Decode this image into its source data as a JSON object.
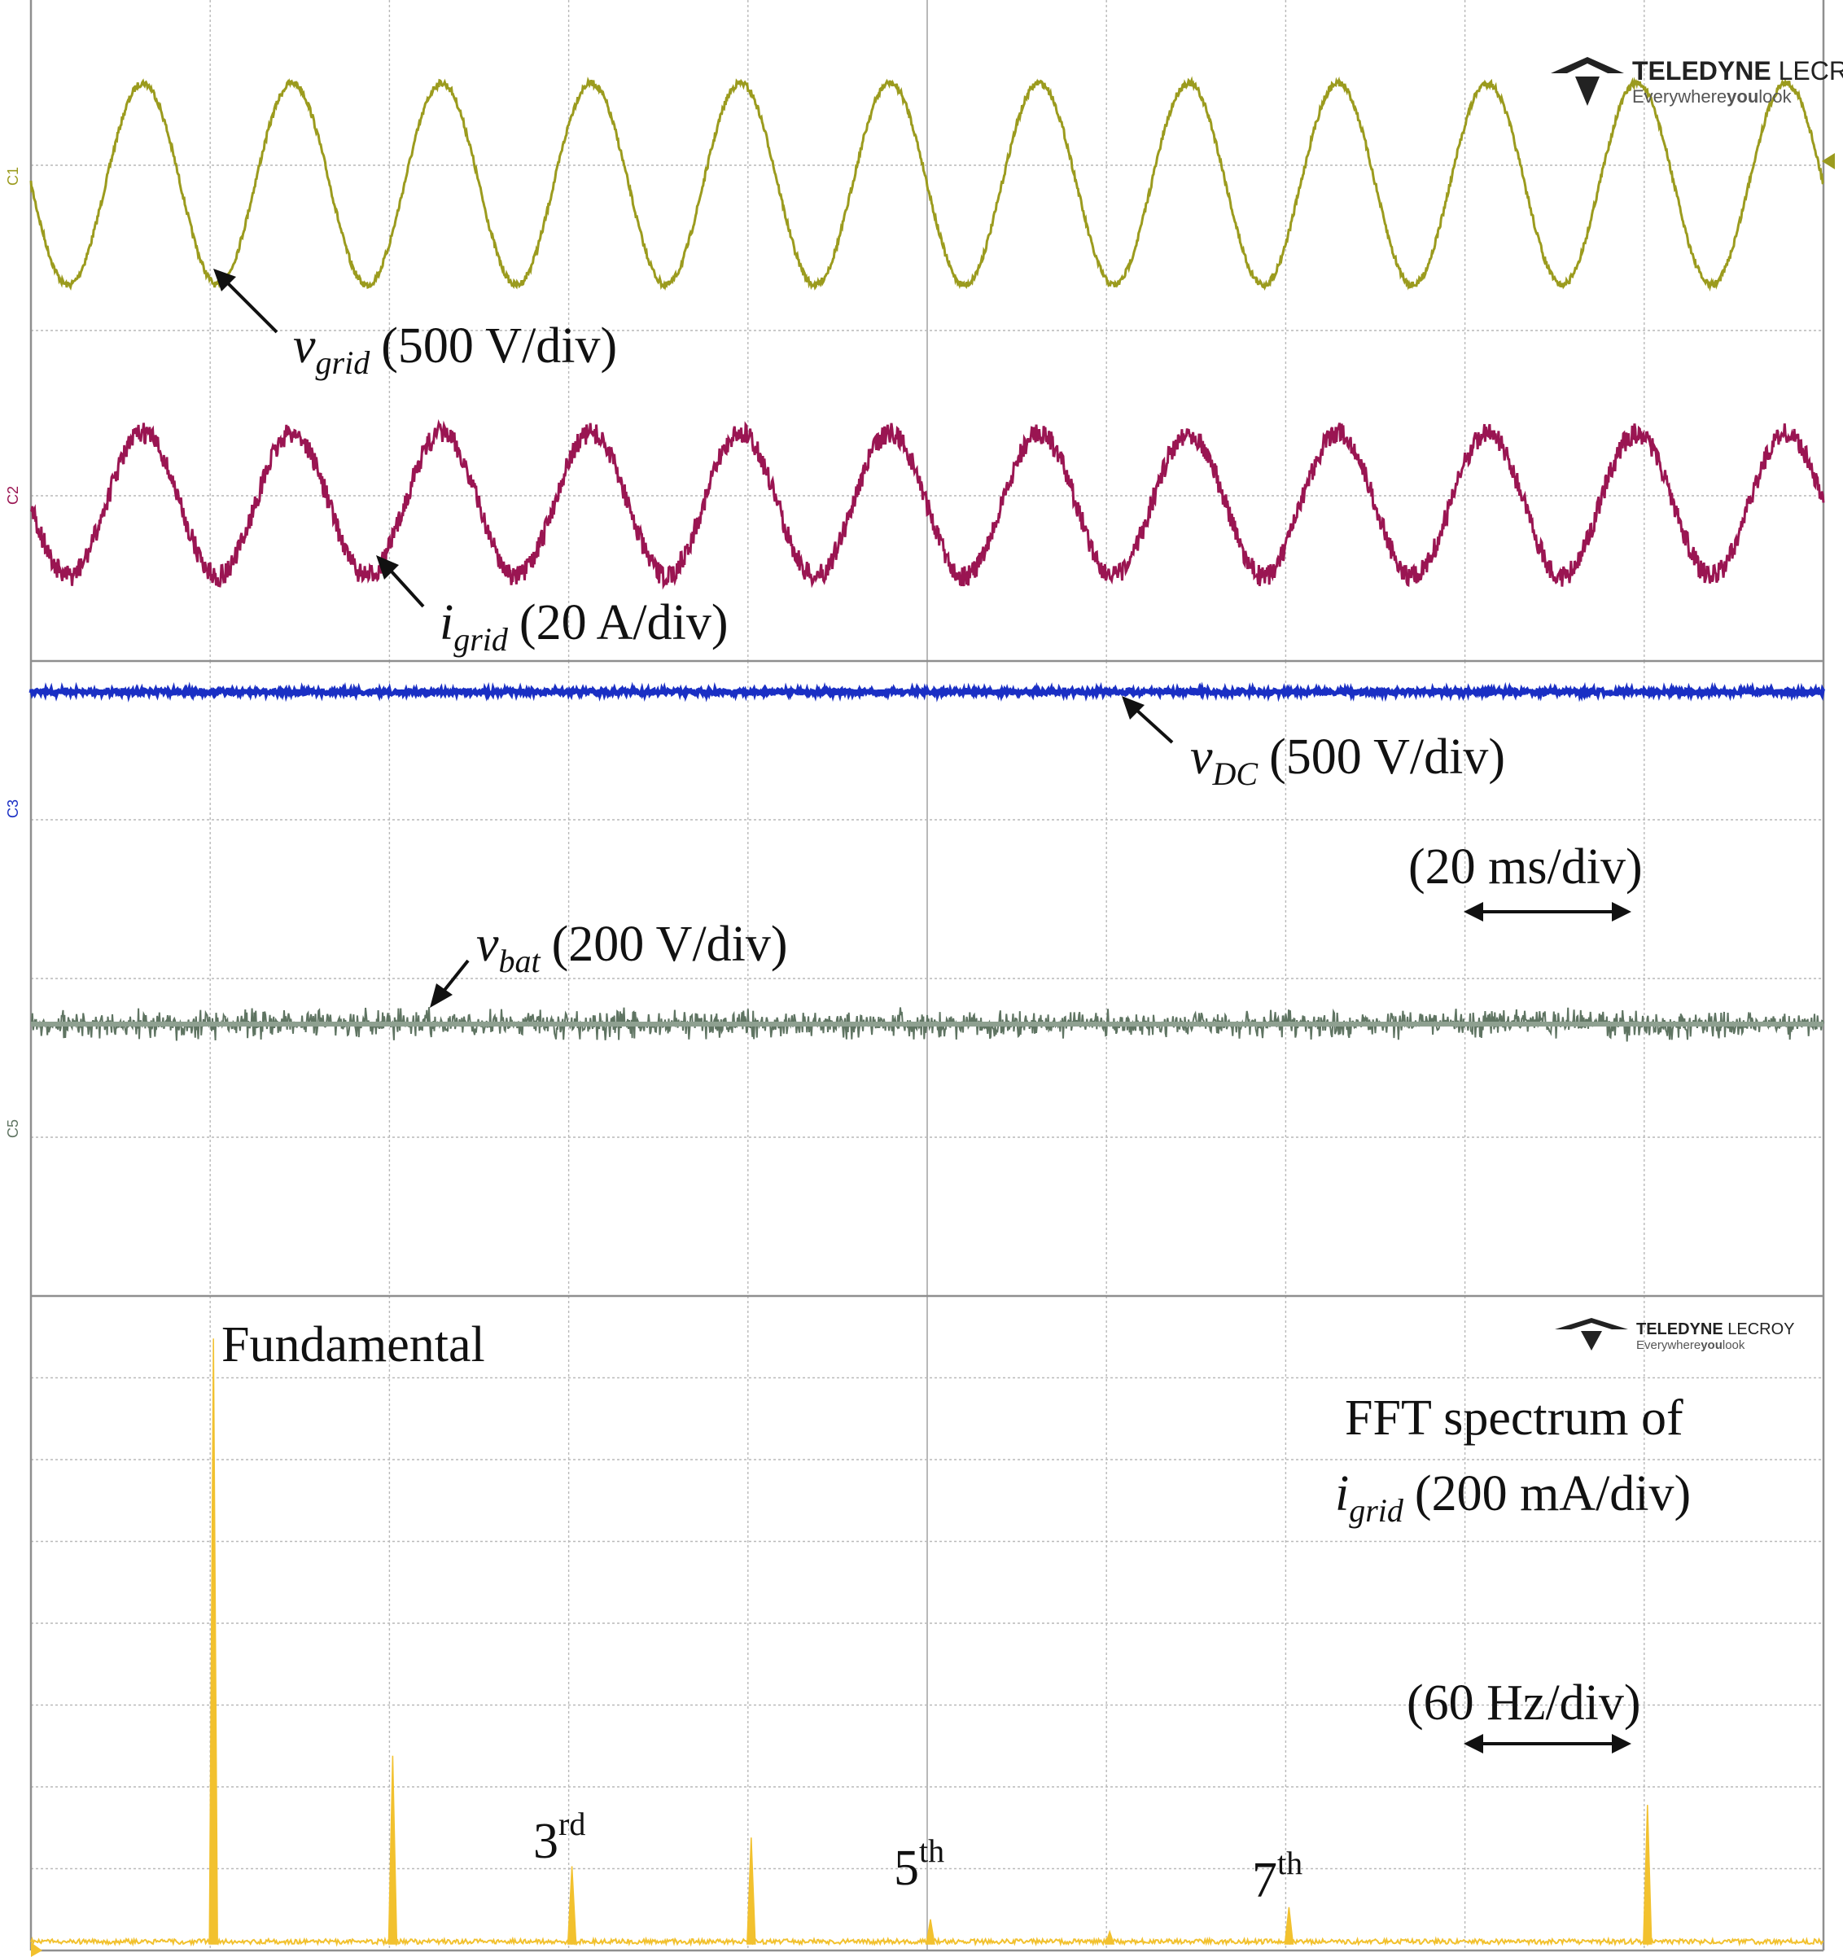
{
  "brand": {
    "name": "TELEDYNE",
    "name2": "LECROY",
    "tagline_pre": "Everywhere",
    "tagline_you": "you",
    "tagline_post": "look"
  },
  "channel_markers": [
    "C1",
    "C2",
    "C3",
    "C5"
  ],
  "colors": {
    "vgrid": "#9b9b1e",
    "igrid": "#9a1552",
    "vdc": "#1a2fc4",
    "vbat": "#5f7462",
    "fft": "#f2c12e",
    "grid": "#b9b9b9",
    "divider": "#8f8f8f"
  },
  "chart_data": [
    {
      "type": "line",
      "panel": "time-domain",
      "x_unit_label": "(20 ms/div)",
      "x_divisions": 10,
      "x_range_ms": [
        0,
        200
      ],
      "grid": true,
      "series": [
        {
          "name": "v_grid",
          "sub": "grid",
          "scale_label": "(500 V/div)",
          "kind": "sine",
          "cycles": 12,
          "noise": "low"
        },
        {
          "name": "i_grid",
          "sub": "grid",
          "scale_label": "(20 A/div)",
          "kind": "sine",
          "cycles": 12,
          "noise": "high"
        },
        {
          "name": "v_DC",
          "sub": "DC",
          "scale_label": "(500 V/div)",
          "kind": "dc",
          "noise": "low"
        },
        {
          "name": "v_bat",
          "sub": "bat",
          "scale_label": "(200 V/div)",
          "kind": "dc",
          "noise": "high"
        }
      ]
    },
    {
      "type": "bar",
      "panel": "fft",
      "title_line1": "FFT spectrum of",
      "title_line2_sub": "grid",
      "title_line2_rest": "(200 mA/div)",
      "x_unit_label": "(60 Hz/div)",
      "harmonics": [
        {
          "x_div": 1,
          "label": "Fundamental",
          "amp_div": 7.4
        },
        {
          "x_div": 2,
          "label": "",
          "amp_div": 2.3
        },
        {
          "x_div": 3,
          "label": "3",
          "sup": "rd",
          "amp_div": 0.95
        },
        {
          "x_div": 4,
          "label": "",
          "amp_div": 1.3
        },
        {
          "x_div": 5,
          "label": "5",
          "sup": "th",
          "amp_div": 0.3
        },
        {
          "x_div": 6,
          "label": "",
          "amp_div": 0.15
        },
        {
          "x_div": 7,
          "label": "7",
          "sup": "th",
          "amp_div": 0.45
        },
        {
          "x_div": 9,
          "label": "",
          "amp_div": 1.7
        }
      ]
    }
  ]
}
